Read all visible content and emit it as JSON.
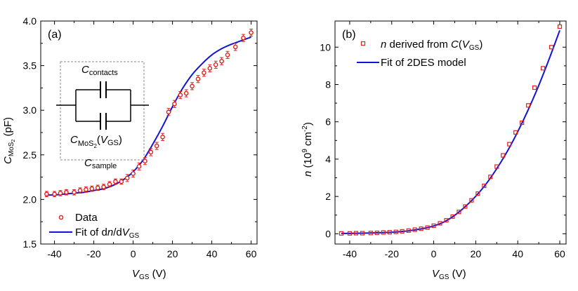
{
  "chart_data": [
    {
      "type": "scatter",
      "panel_label": "(a)",
      "xlabel": "VGS (V)",
      "ylabel": "CMoS2 (pF)",
      "xlim": [
        -47,
        63
      ],
      "ylim": [
        1.5,
        4.0
      ],
      "xticks": [
        -40,
        -20,
        0,
        20,
        40,
        60
      ],
      "xtick_labels": [
        "-40",
        "-20",
        "0",
        "20",
        "40",
        "60"
      ],
      "yticks": [
        1.5,
        2.0,
        2.5,
        3.0,
        3.5,
        4.0
      ],
      "ytick_labels": [
        "1.5",
        "2.0",
        "2.5",
        "3.0",
        "3.5",
        "4.0"
      ],
      "series": [
        {
          "name": "Data",
          "style": "open-circle-errorbar",
          "color": "#e0201c",
          "x": [
            -44,
            -40,
            -37,
            -34,
            -30,
            -27,
            -24,
            -21,
            -18,
            -15,
            -12,
            -9,
            -6,
            -3,
            0,
            3,
            6,
            9,
            12,
            15,
            18,
            21,
            24,
            27,
            30,
            33,
            36,
            39,
            42,
            45,
            48,
            52,
            56,
            60
          ],
          "y": [
            2.06,
            2.06,
            2.07,
            2.08,
            2.08,
            2.1,
            2.11,
            2.12,
            2.13,
            2.14,
            2.17,
            2.2,
            2.2,
            2.24,
            2.29,
            2.37,
            2.43,
            2.53,
            2.6,
            2.7,
            2.98,
            3.07,
            3.17,
            3.19,
            3.27,
            3.35,
            3.42,
            3.47,
            3.51,
            3.55,
            3.62,
            3.71,
            3.81,
            3.87
          ],
          "err": [
            0.03,
            0.03,
            0.03,
            0.03,
            0.03,
            0.03,
            0.03,
            0.03,
            0.03,
            0.03,
            0.03,
            0.03,
            0.03,
            0.04,
            0.04,
            0.04,
            0.04,
            0.04,
            0.04,
            0.04,
            0.04,
            0.04,
            0.04,
            0.04,
            0.04,
            0.04,
            0.04,
            0.04,
            0.04,
            0.04,
            0.04,
            0.04,
            0.04,
            0.04
          ]
        },
        {
          "name": "Fit of dn/dVGS",
          "style": "line",
          "color": "#1414d4",
          "x": [
            -44,
            -40,
            -35,
            -30,
            -25,
            -20,
            -15,
            -10,
            -5,
            0,
            5,
            10,
            15,
            20,
            25,
            30,
            35,
            40,
            45,
            50,
            55,
            60
          ],
          "y": [
            2.05,
            2.05,
            2.06,
            2.07,
            2.08,
            2.1,
            2.12,
            2.16,
            2.22,
            2.31,
            2.44,
            2.62,
            2.82,
            3.04,
            3.24,
            3.4,
            3.52,
            3.62,
            3.69,
            3.74,
            3.78,
            3.82
          ]
        }
      ],
      "legend": {
        "position": "bottom-left",
        "data_label": "Data",
        "fit_label_text": "Fit of d",
        "fit_label_italic": "n",
        "fit_label_mid": "/d",
        "fit_label_V": "V",
        "fit_label_sub": "GS"
      },
      "inset": {
        "top_label": "C",
        "top_sub": "contacts",
        "bottom_label_C": "C",
        "bottom_label_sub": "MoS",
        "bottom_label_sub2": "2",
        "bottom_label_paren_open": "(",
        "bottom_label_V": "V",
        "bottom_label_Vsub": "GS",
        "bottom_label_paren_close": ")",
        "sample_label": "C",
        "sample_sub": "sample"
      },
      "ylabel_parts": {
        "main": "C",
        "sub": "MoS",
        "sub2": "2",
        "unit": " (pF)"
      },
      "xlabel_parts": {
        "main": "V",
        "sub": "GS",
        "unit": " (V)"
      }
    },
    {
      "type": "scatter",
      "panel_label": "(b)",
      "xlabel": "VGS (V)",
      "ylabel": "n (10^9 cm^-2)",
      "xlim": [
        -47,
        63
      ],
      "ylim": [
        -0.55,
        11.4
      ],
      "xticks": [
        -40,
        -20,
        0,
        20,
        40,
        60
      ],
      "xtick_labels": [
        "-40",
        "-20",
        "0",
        "20",
        "40",
        "60"
      ],
      "yticks": [
        0,
        2,
        4,
        6,
        8,
        10
      ],
      "ytick_labels": [
        "0",
        "2",
        "4",
        "6",
        "8",
        "10"
      ],
      "series": [
        {
          "name": "n derived from C(VGS)",
          "style": "open-square",
          "color": "#e0201c",
          "x": [
            -44,
            -40,
            -37,
            -34,
            -30,
            -27,
            -24,
            -21,
            -18,
            -15,
            -12,
            -9,
            -6,
            -3,
            0,
            3,
            6,
            9,
            12,
            15,
            18,
            21,
            24,
            27,
            30,
            33,
            36,
            39,
            42,
            45,
            48,
            52,
            56,
            60
          ],
          "y": [
            0.02,
            0.02,
            0.03,
            0.03,
            0.04,
            0.05,
            0.07,
            0.08,
            0.1,
            0.13,
            0.17,
            0.22,
            0.27,
            0.33,
            0.43,
            0.56,
            0.72,
            0.92,
            1.17,
            1.46,
            1.79,
            2.15,
            2.57,
            3.05,
            3.6,
            4.2,
            4.8,
            5.43,
            5.95,
            6.88,
            7.83,
            8.87,
            10.0,
            11.1
          ]
        },
        {
          "name": "Fit of 2DES model",
          "style": "line",
          "color": "#1414d4",
          "x": [
            -44,
            -40,
            -35,
            -30,
            -25,
            -20,
            -15,
            -10,
            -5,
            0,
            5,
            10,
            15,
            20,
            25,
            30,
            35,
            40,
            45,
            50,
            55,
            60
          ],
          "y": [
            0.02,
            0.02,
            0.03,
            0.04,
            0.06,
            0.08,
            0.12,
            0.19,
            0.28,
            0.42,
            0.64,
            0.99,
            1.45,
            2.01,
            2.68,
            3.49,
            4.41,
            5.47,
            6.65,
            7.95,
            9.38,
            10.9
          ]
        }
      ],
      "legend": {
        "position": "top-left",
        "square_label_n": "n",
        "square_label_mid": " derived from ",
        "square_label_C": "C",
        "square_label_paren_open": "(",
        "square_label_V": "V",
        "square_label_sub": "GS",
        "square_label_paren_close": ")",
        "line_label": "Fit of 2DES model"
      },
      "ylabel_parts": {
        "main": "n",
        "mid": " (10",
        "sup": "9",
        "mid2": " cm",
        "sup2": "-2",
        "close": ")"
      },
      "xlabel_parts": {
        "main": "V",
        "sub": "GS",
        "unit": " (V)"
      }
    }
  ]
}
